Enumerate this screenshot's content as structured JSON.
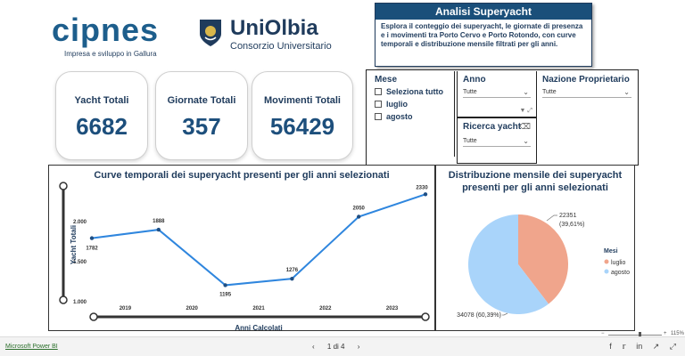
{
  "logos": {
    "cipnes_word": "cipnes",
    "cipnes_subtitle": "Impresa e sviluppo in Gallura",
    "uni_word": "UniOlbia",
    "uni_subtitle": "Consorzio Universitario"
  },
  "info": {
    "title": "Analisi Superyacht",
    "text": "Esplora il conteggio dei superyacht, le giornate di presenza e i movimenti tra Porto Cervo e Porto Rotondo, con curve temporali e distribuzione mensile filtrati per gli anni."
  },
  "kpis": [
    {
      "label": "Yacht Totali",
      "value": "6682"
    },
    {
      "label": "Giornate Totali",
      "value": "357"
    },
    {
      "label": "Movimenti Totali",
      "value": "56429"
    }
  ],
  "slicers": {
    "mese": {
      "title": "Mese",
      "items": [
        "Seleziona tutto",
        "luglio",
        "agosto"
      ]
    },
    "anno": {
      "title": "Anno",
      "value": "Tutte"
    },
    "ricerca": {
      "title": "Ricerca yacht",
      "value": "Tutte"
    },
    "nazione": {
      "title": "Nazione Proprietario",
      "value": "Tutte"
    }
  },
  "chart_data": [
    {
      "type": "line",
      "title": "Curve temporali dei superyacht presenti per gli anni selezionati",
      "xlabel": "Anni Calcolati",
      "ylabel": "Yacht Totali",
      "x_ticks": [
        "2019",
        "2020",
        "2021",
        "2022",
        "2023"
      ],
      "y_ticks": [
        "1.000",
        "1.500",
        "2.000"
      ],
      "ylim": [
        1000,
        2400
      ],
      "xlim": [
        2018.5,
        2023.5
      ],
      "x": [
        2018.5,
        2019.5,
        2020.5,
        2021.5,
        2022.5,
        2023.5
      ],
      "values": [
        1782,
        1888,
        1195,
        1276,
        2050,
        2330
      ],
      "labels": [
        "1782",
        "1888",
        "1195",
        "1276",
        "2050",
        "2330"
      ],
      "color": "#2f86de"
    },
    {
      "type": "pie",
      "title": "Distribuzione mensile dei superyacht presenti per gli anni selezionati",
      "legend_title": "Mesi",
      "slices": [
        {
          "name": "luglio",
          "value": 22351,
          "label": "22351 (39,61%)",
          "color": "#f0a58c"
        },
        {
          "name": "agosto",
          "value": 34078,
          "label": "34078 (60,39%)",
          "color": "#a9d4fa"
        }
      ]
    }
  ],
  "footer": {
    "powerbi_link": "Microsoft Power BI",
    "page_indicator": "1 di 4",
    "zoom": "115%"
  }
}
